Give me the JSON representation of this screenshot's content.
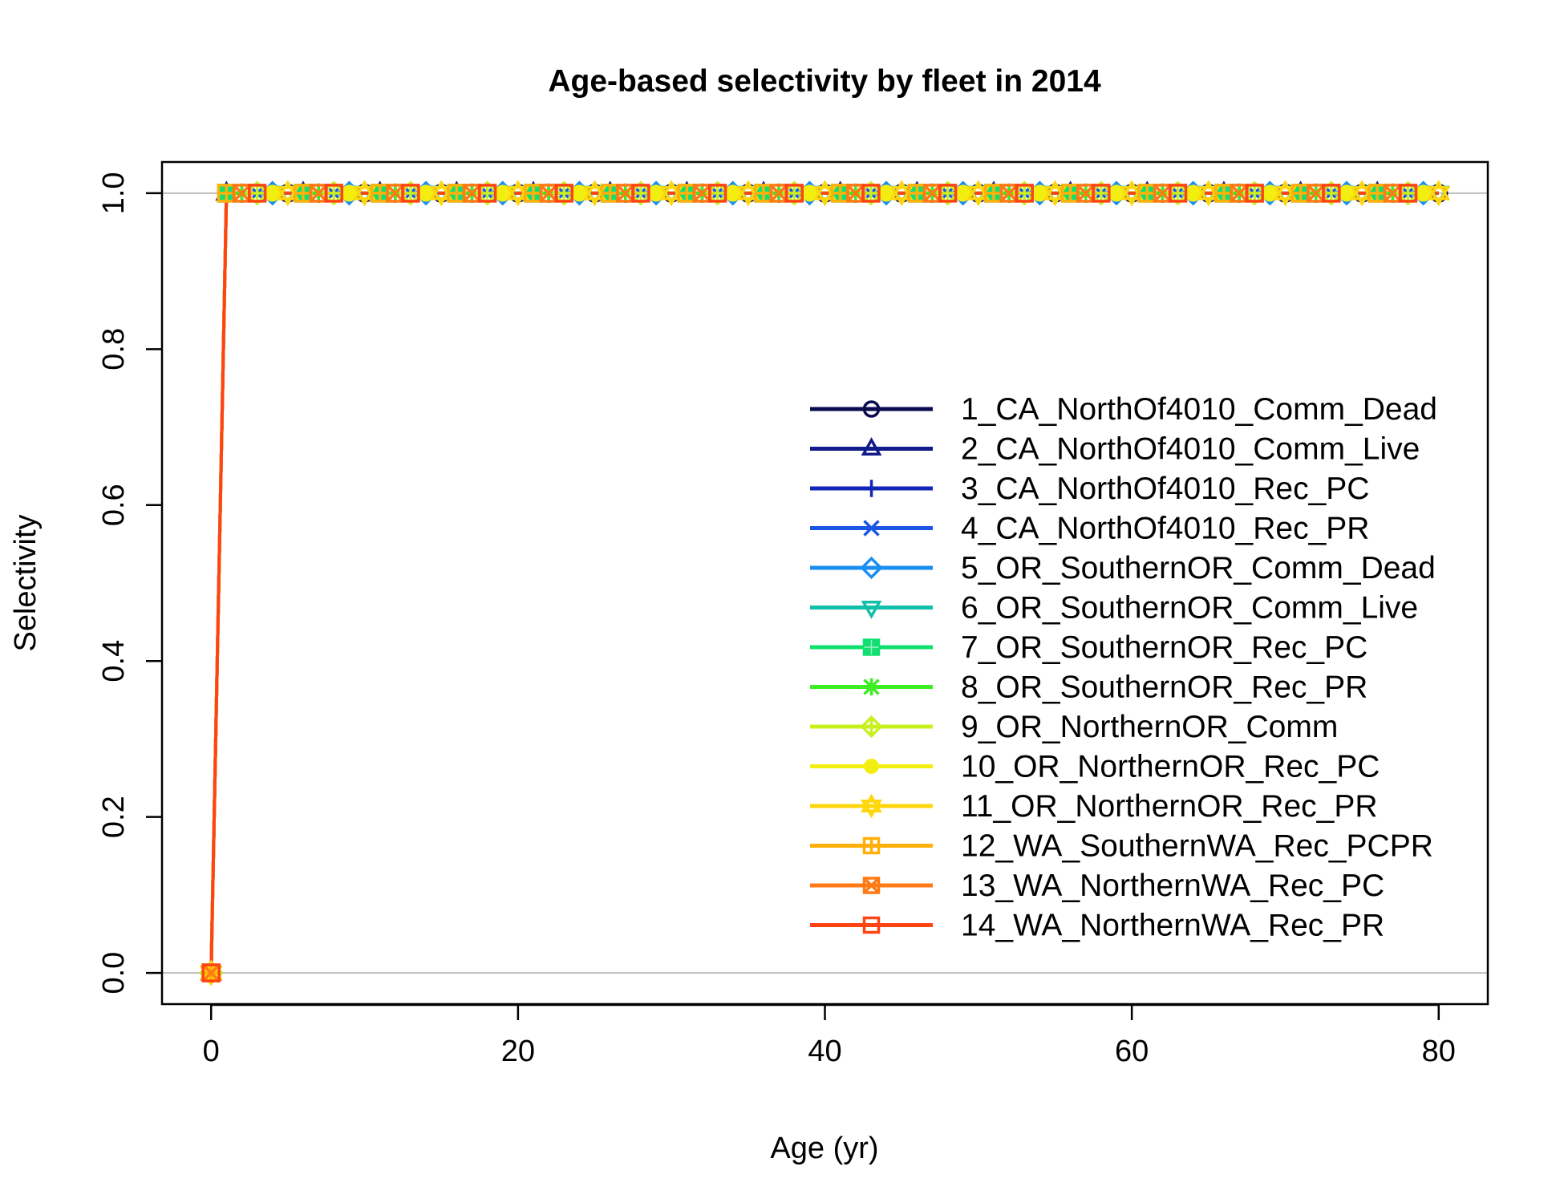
{
  "chart_data": {
    "type": "line",
    "title": "Age-based selectivity by fleet in 2014",
    "xlabel": "Age (yr)",
    "ylabel": "Selectivity",
    "xlim": [
      -3.2,
      83.2
    ],
    "ylim": [
      -0.04,
      1.04
    ],
    "xticks": [
      0,
      20,
      40,
      60,
      80
    ],
    "yticks": [
      0.0,
      0.2,
      0.4,
      0.6,
      0.8,
      1.0
    ],
    "xtick_labels": [
      "0",
      "20",
      "40",
      "60",
      "80"
    ],
    "ytick_labels": [
      "0.0",
      "0.2",
      "0.4",
      "0.6",
      "0.8",
      "1.0"
    ],
    "horizontal_gridlines": [
      0,
      1
    ],
    "legend_position": "right",
    "age_min": 0,
    "age_max": 80,
    "selectivity_age_0": 0,
    "selectivity_age_1_to_80": 1,
    "series": [
      {
        "name": "1_CA_NorthOf4010_Comm_Dead",
        "color": "#0a0a4f",
        "marker": "circle-open"
      },
      {
        "name": "2_CA_NorthOf4010_Comm_Live",
        "color": "#101a8a",
        "marker": "triangle-open"
      },
      {
        "name": "3_CA_NorthOf4010_Rec_PC",
        "color": "#1426b8",
        "marker": "plus"
      },
      {
        "name": "4_CA_NorthOf4010_Rec_PR",
        "color": "#1a56e6",
        "marker": "x"
      },
      {
        "name": "5_OR_SouthernOR_Comm_Dead",
        "color": "#1a8ef0",
        "marker": "diamond-open"
      },
      {
        "name": "6_OR_SouthernOR_Comm_Live",
        "color": "#12bfa8",
        "marker": "triangle-down-open"
      },
      {
        "name": "7_OR_SouthernOR_Rec_PC",
        "color": "#10e070",
        "marker": "square-cross"
      },
      {
        "name": "8_OR_SouthernOR_Rec_PR",
        "color": "#3cee22",
        "marker": "asterisk"
      },
      {
        "name": "9_OR_NorthernOR_Comm",
        "color": "#c8f020",
        "marker": "diamond-plus"
      },
      {
        "name": "10_OR_NorthernOR_Rec_PC",
        "color": "#f2ee10",
        "marker": "circle-filled"
      },
      {
        "name": "11_OR_NorthernOR_Rec_PR",
        "color": "#ffd60a",
        "marker": "star"
      },
      {
        "name": "12_WA_SouthernWA_Rec_PCPR",
        "color": "#ffb00a",
        "marker": "square-plus"
      },
      {
        "name": "13_WA_NorthernWA_Rec_PC",
        "color": "#ff7a14",
        "marker": "square-x"
      },
      {
        "name": "14_WA_NorthernWA_Rec_PR",
        "color": "#ff4414",
        "marker": "square-open"
      }
    ]
  }
}
